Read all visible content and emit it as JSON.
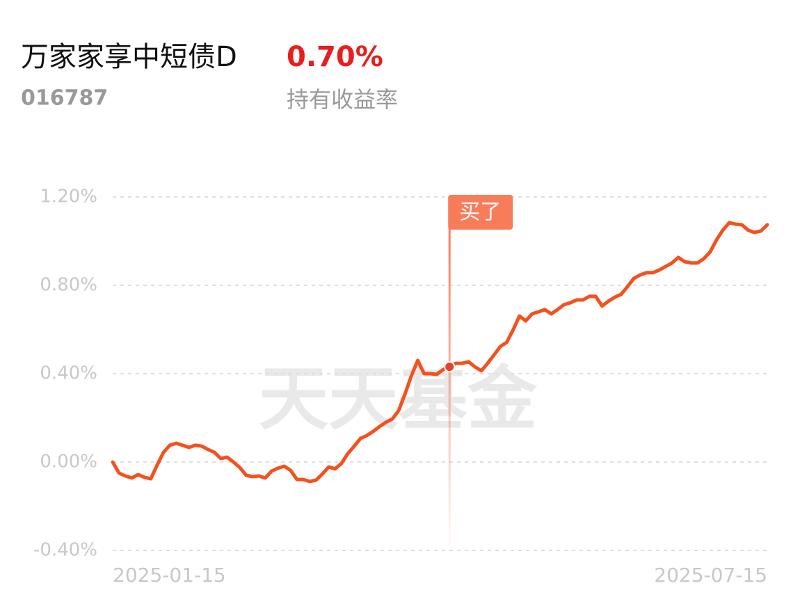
{
  "chart_data": {
    "type": "line",
    "title": "万家家享中短债D",
    "subtitle": "016787",
    "return_rate": {
      "value": 0.7,
      "label": "0.70%"
    },
    "return_label": "持有收益率",
    "watermark": "天天基金",
    "marker_label": "买了",
    "color": "#f4511e",
    "grid": true,
    "ylim": [
      -0.4,
      1.2
    ],
    "yticks": [
      {
        "value": 1.2,
        "label": "1.20%"
      },
      {
        "value": 0.8,
        "label": "0.80%"
      },
      {
        "value": 0.4,
        "label": "0.40%"
      },
      {
        "value": 0,
        "label": "0.00%"
      },
      {
        "value": -0.4,
        "label": "-0.40%"
      }
    ],
    "categories": [
      "2025-01-15",
      null,
      null,
      null,
      null,
      null,
      null,
      null,
      null,
      null,
      null,
      null,
      null,
      null,
      null,
      null,
      null,
      null,
      null,
      null,
      null,
      null,
      null,
      null,
      null,
      null,
      null,
      null,
      null,
      null,
      null,
      null,
      null,
      null,
      null,
      null,
      null,
      null,
      null,
      null,
      null,
      null,
      null,
      null,
      null,
      null,
      null,
      null,
      null,
      null,
      null,
      null,
      null,
      null,
      null,
      null,
      null,
      null,
      null,
      null,
      null,
      null,
      null,
      null,
      null,
      null,
      null,
      null,
      null,
      null,
      null,
      null,
      null,
      null,
      null,
      null,
      null,
      null,
      null,
      null,
      null,
      null,
      null,
      null,
      null,
      null,
      null,
      null,
      null,
      null,
      null,
      null,
      null,
      null,
      null,
      null,
      null,
      null,
      null,
      null,
      null,
      null,
      null,
      "2025-07-15"
    ],
    "values": [
      0,
      -0.05,
      -0.063,
      -0.072,
      -0.057,
      -0.069,
      -0.076,
      -0.013,
      0.044,
      0.076,
      0.085,
      0.076,
      0.066,
      0.076,
      0.072,
      0.057,
      0.044,
      0.016,
      0.022,
      0,
      -0.025,
      -0.06,
      -0.066,
      -0.063,
      -0.072,
      -0.041,
      -0.028,
      -0.019,
      -0.038,
      -0.079,
      -0.079,
      -0.088,
      -0.082,
      -0.054,
      -0.022,
      -0.031,
      -0.006,
      0.038,
      0.072,
      0.107,
      0.12,
      0.139,
      0.161,
      0.18,
      0.195,
      0.233,
      0.309,
      0.391,
      0.46,
      0.4,
      0.4,
      0.397,
      0.419,
      0.431,
      0.447,
      0.447,
      0.454,
      0.431,
      0.413,
      0.447,
      0.485,
      0.523,
      0.542,
      0.598,
      0.661,
      0.639,
      0.671,
      0.68,
      0.69,
      0.671,
      0.69,
      0.712,
      0.721,
      0.734,
      0.734,
      0.75,
      0.75,
      0.706,
      0.728,
      0.746,
      0.759,
      0.794,
      0.831,
      0.847,
      0.857,
      0.857,
      0.869,
      0.885,
      0.901,
      0.926,
      0.907,
      0.901,
      0.901,
      0.92,
      0.951,
      1.005,
      1.049,
      1.083,
      1.077,
      1.074,
      1.049,
      1.039,
      1.046,
      1.074
    ]
  }
}
